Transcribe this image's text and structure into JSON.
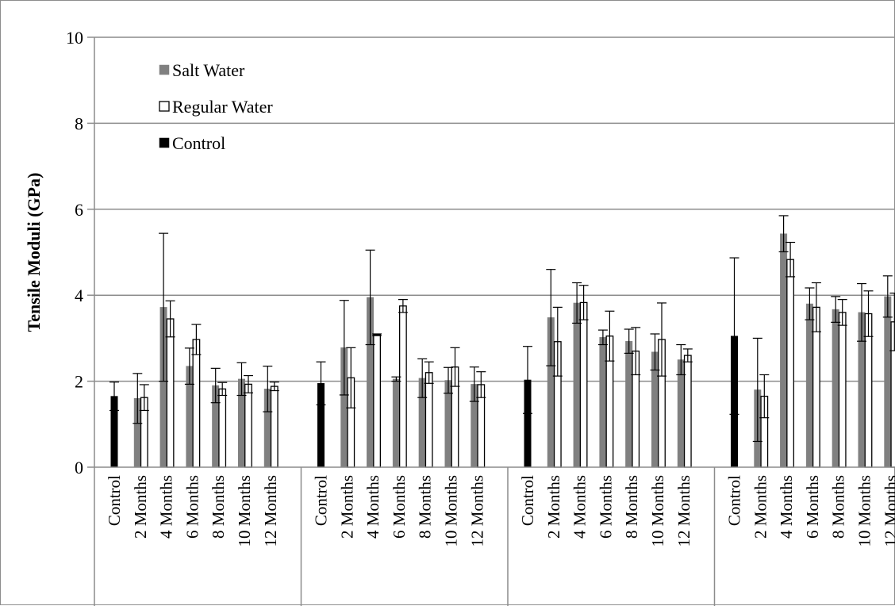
{
  "chart_data": {
    "type": "bar",
    "ylabel": "Tensile Moduli (GPa)",
    "xlabel": "",
    "ylim": [
      0,
      10
    ],
    "yticks": [
      0,
      2,
      4,
      6,
      8,
      10
    ],
    "grid": true,
    "legend_position": "top-left",
    "legend": [
      {
        "label": "Salt Water",
        "series": "salt"
      },
      {
        "label": "Regular Water",
        "series": "regular"
      },
      {
        "label": "Control",
        "series": "control"
      }
    ],
    "series_styles": {
      "salt": {
        "fill": "#808080",
        "stroke": "#808080"
      },
      "regular": {
        "fill": "#ffffff",
        "stroke": "#000000"
      },
      "control": {
        "fill": "#000000",
        "stroke": "#000000"
      }
    },
    "category_labels": [
      "Control",
      "2 Months",
      "4 Months",
      "6 Months",
      "8 Months",
      "10 Months",
      "12 Months"
    ],
    "groups": [
      {
        "control": {
          "value": 1.65,
          "err": 0.33
        },
        "salt": [
          {
            "value": 1.6,
            "err": 0.58
          },
          {
            "value": 3.72,
            "err": 1.72
          },
          {
            "value": 2.35,
            "err": 0.42
          },
          {
            "value": 1.9,
            "err": 0.4
          },
          {
            "value": 2.05,
            "err": 0.38
          },
          {
            "value": 1.82,
            "err": 0.53
          }
        ],
        "regular": [
          {
            "value": 1.62,
            "err": 0.3
          },
          {
            "value": 3.45,
            "err": 0.42
          },
          {
            "value": 2.97,
            "err": 0.35
          },
          {
            "value": 1.82,
            "err": 0.15
          },
          {
            "value": 1.93,
            "err": 0.2
          },
          {
            "value": 1.88,
            "err": 0.1
          }
        ]
      },
      {
        "control": {
          "value": 1.95,
          "err": 0.5
        },
        "salt": [
          {
            "value": 2.78,
            "err": 1.1
          },
          {
            "value": 3.95,
            "err": 1.1
          },
          {
            "value": 2.05,
            "err": 0.05
          },
          {
            "value": 2.07,
            "err": 0.45
          },
          {
            "value": 2.02,
            "err": 0.3
          },
          {
            "value": 1.93,
            "err": 0.4
          }
        ],
        "regular": [
          {
            "value": 2.08,
            "err": 0.7
          },
          {
            "value": 3.08,
            "err": 0.02
          },
          {
            "value": 3.75,
            "err": 0.15
          },
          {
            "value": 2.2,
            "err": 0.25
          },
          {
            "value": 2.33,
            "err": 0.45
          },
          {
            "value": 1.92,
            "err": 0.3
          }
        ]
      },
      {
        "control": {
          "value": 2.03,
          "err": 0.78
        },
        "salt": [
          {
            "value": 3.48,
            "err": 1.12
          },
          {
            "value": 3.82,
            "err": 0.47
          },
          {
            "value": 3.02,
            "err": 0.17
          },
          {
            "value": 2.93,
            "err": 0.28
          },
          {
            "value": 2.68,
            "err": 0.42
          },
          {
            "value": 2.5,
            "err": 0.35
          }
        ],
        "regular": [
          {
            "value": 2.92,
            "err": 0.8
          },
          {
            "value": 3.83,
            "err": 0.4
          },
          {
            "value": 3.05,
            "err": 0.58
          },
          {
            "value": 2.7,
            "err": 0.55
          },
          {
            "value": 2.97,
            "err": 0.85
          },
          {
            "value": 2.6,
            "err": 0.15
          }
        ]
      },
      {
        "control": {
          "value": 3.05,
          "err": 1.82
        },
        "salt": [
          {
            "value": 1.8,
            "err": 1.2
          },
          {
            "value": 5.43,
            "err": 0.42
          },
          {
            "value": 3.8,
            "err": 0.37
          },
          {
            "value": 3.67,
            "err": 0.3
          },
          {
            "value": 3.6,
            "err": 0.67
          },
          {
            "value": 3.97,
            "err": 0.48
          }
        ],
        "regular": [
          {
            "value": 1.65,
            "err": 0.5
          },
          {
            "value": 4.83,
            "err": 0.4
          },
          {
            "value": 3.72,
            "err": 0.57
          },
          {
            "value": 3.6,
            "err": 0.3
          },
          {
            "value": 3.57,
            "err": 0.53
          },
          {
            "value": 3.38,
            "err": 0.67
          }
        ]
      }
    ]
  }
}
